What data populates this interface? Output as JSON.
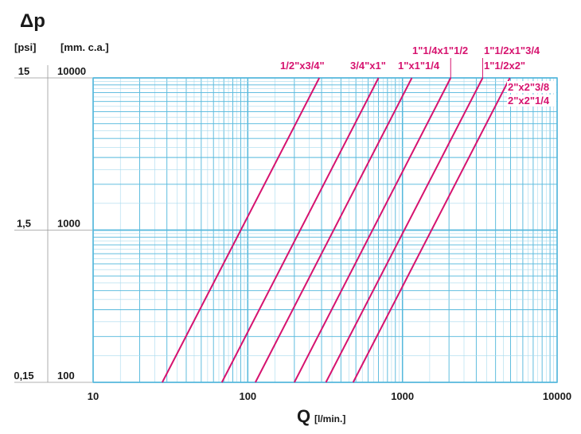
{
  "chart_data": {
    "type": "line",
    "x_scale": "log",
    "y_scale": "log",
    "xlim": [
      10,
      10000
    ],
    "ylim": [
      100,
      10000
    ],
    "grid": true,
    "x_title": "Q",
    "x_unit": "[l/min.]",
    "y_title": "Δp",
    "y_unit_left": "[psi]",
    "y_unit_right": "[mm. c.a.]",
    "x_ticks": [
      {
        "value": 10,
        "label": "10"
      },
      {
        "value": 100,
        "label": "100"
      },
      {
        "value": 1000,
        "label": "1000"
      },
      {
        "value": 10000,
        "label": "10000"
      }
    ],
    "y_ticks": [
      {
        "value": 10000,
        "psi": "15",
        "mm": "10000"
      },
      {
        "value": 1000,
        "psi": "1,5",
        "mm": "1000"
      },
      {
        "value": 100,
        "psi": "0,15",
        "mm": "100"
      }
    ],
    "series": [
      {
        "name": "1/2\"x3/4\"",
        "points": [
          [
            28,
            100
          ],
          [
            290,
            10000
          ]
        ]
      },
      {
        "name": "3/4\"x1\"",
        "points": [
          [
            68,
            100
          ],
          [
            700,
            10000
          ]
        ]
      },
      {
        "name": "1\"x1\"1/4",
        "points": [
          [
            112,
            100
          ],
          [
            1150,
            10000
          ]
        ]
      },
      {
        "name": "1\"1/4x1\"1/2",
        "points": [
          [
            200,
            100
          ],
          [
            2050,
            10000
          ]
        ]
      },
      {
        "name": "1\"1/2x1\"3/4",
        "points": [
          [
            320,
            100
          ],
          [
            3300,
            10000
          ]
        ]
      },
      {
        "name": "1\"1/2x2\"",
        "points": [
          [
            480,
            100
          ],
          [
            4950,
            10000
          ]
        ]
      }
    ],
    "extra_labels": [
      "2\"x2\"3/8",
      "2\"x2\"1/4"
    ]
  },
  "colors": {
    "grid": "#55b8dc",
    "grid_minor": "#a8daee",
    "curve": "#d6136f",
    "text": "#1a1a1a"
  }
}
